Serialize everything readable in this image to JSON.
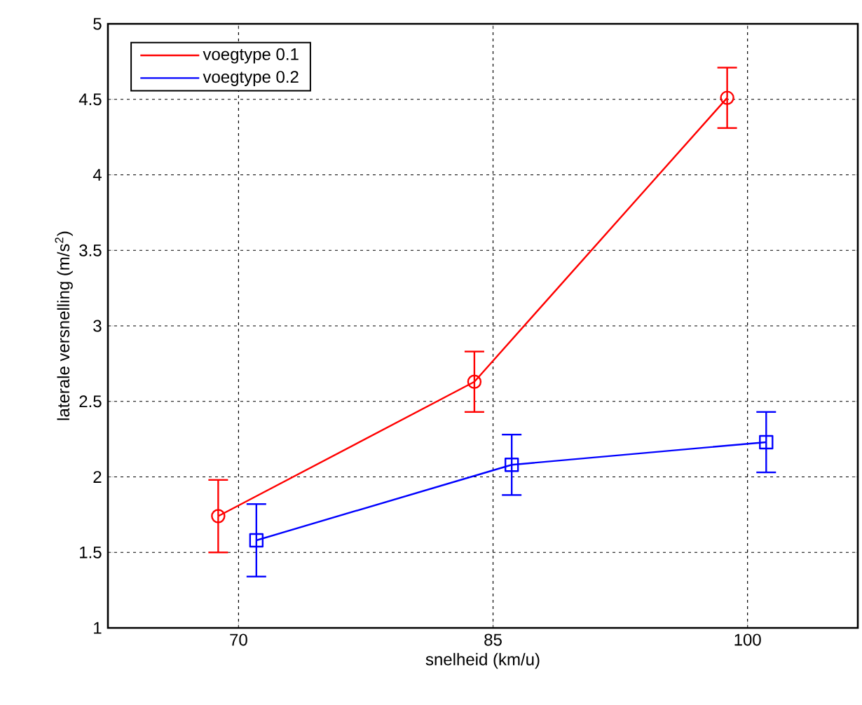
{
  "chart_data": {
    "type": "line",
    "xlabel": "snelheid (km/u)",
    "ylabel": "laterale versnelling (m/s$^{2}$)",
    "xlim": [
      62.3,
      106.5
    ],
    "ylim": [
      1,
      5
    ],
    "xticks": [
      70,
      85,
      100
    ],
    "yticks": [
      1,
      1.5,
      2,
      2.5,
      3,
      3.5,
      4,
      4.5,
      5
    ],
    "grid": true,
    "legend": "top left",
    "line_style": "solid",
    "series": [
      {
        "name": "voegtype 0.1",
        "color": "#ff0000",
        "marker": "circle",
        "x": [
          68.8,
          83.9,
          98.8
        ],
        "values": [
          1.74,
          2.63,
          4.51
        ],
        "errors": [
          0.24,
          0.2,
          0.2
        ]
      },
      {
        "name": "voegtype 0.2",
        "color": "#0000ff",
        "marker": "square",
        "x": [
          71.05,
          86.1,
          101.1
        ],
        "values": [
          1.58,
          2.08,
          2.23
        ],
        "errors": [
          0.24,
          0.2,
          0.2
        ]
      }
    ]
  }
}
